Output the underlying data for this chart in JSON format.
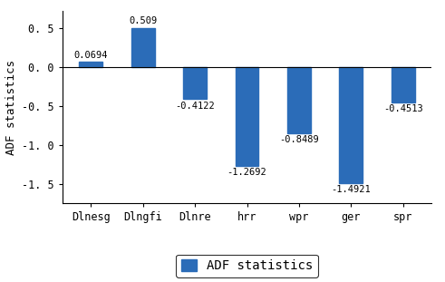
{
  "categories": [
    "Dlnesg",
    "Dlngfi",
    "Dlnre",
    "hrr",
    "wpr",
    "ger",
    "spr"
  ],
  "values": [
    0.0694,
    0.509,
    -0.4122,
    -1.2692,
    -0.8489,
    -1.4921,
    -0.4513
  ],
  "value_labels": [
    "0.0694",
    "0.509",
    "-0.4122",
    "-1.2692",
    "-0.8489",
    "-1.4921",
    "-0.4513"
  ],
  "bar_color": "#2B6CB8",
  "ylabel": "ADF statistics",
  "ylim": [
    -1.75,
    0.72
  ],
  "yticks": [
    -1.5,
    -1.0,
    -0.5,
    0.0,
    0.5
  ],
  "ytick_labels": [
    "-1. 5",
    "-1. 0",
    "-0. 5",
    "0. 0",
    "0. 5"
  ],
  "legend_label": "ADF statistics",
  "bar_width": 0.45,
  "annotation_fontsize": 7.5,
  "label_fontsize": 9,
  "tick_fontsize": 8.5,
  "legend_fontsize": 10,
  "background_color": "#ffffff"
}
